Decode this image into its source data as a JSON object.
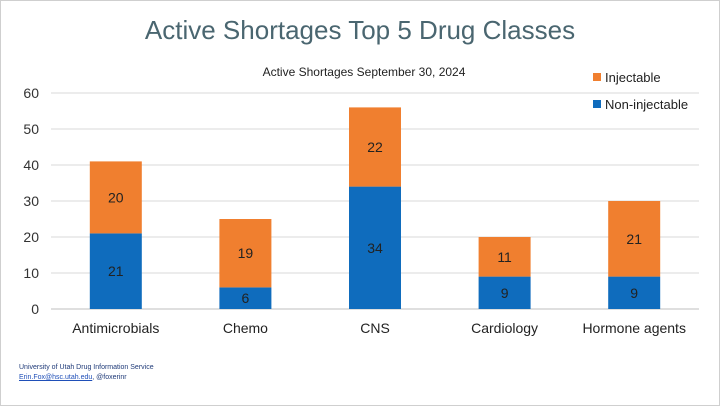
{
  "slide": {
    "title": "Active Shortages Top 5 Drug Classes",
    "footer_line1": "University of Utah Drug Information Service",
    "footer_email": "Erin.Fox@hsc.utah.edu",
    "footer_handle": ", @foxerinr"
  },
  "chart_data": {
    "type": "bar",
    "stacked": true,
    "title": "Active Shortages September 30, 2024",
    "categories": [
      "Antimicrobials",
      "Chemo",
      "CNS",
      "Cardiology",
      "Hormone agents"
    ],
    "series": [
      {
        "name": "Non-injectable",
        "color": "#0f6cbd",
        "values": [
          21,
          6,
          34,
          9,
          9
        ]
      },
      {
        "name": "Injectable",
        "color": "#f07f2f",
        "values": [
          20,
          19,
          22,
          11,
          21
        ]
      }
    ],
    "ylim": [
      0,
      60
    ],
    "yticks": [
      0,
      10,
      20,
      30,
      40,
      50,
      60
    ],
    "grid": true,
    "legend_position": "top-right"
  }
}
